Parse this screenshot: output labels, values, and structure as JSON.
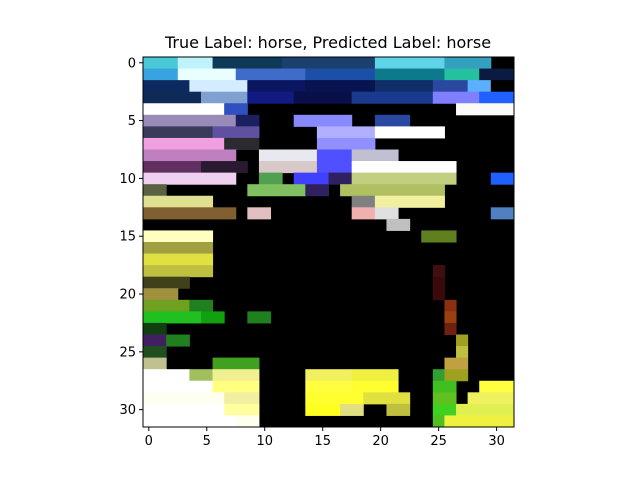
{
  "figure": {
    "title": "True Label: horse, Predicted Label: horse",
    "image_size": 32,
    "x_ticks": [
      "0",
      "5",
      "10",
      "15",
      "20",
      "25",
      "30"
    ],
    "y_ticks": [
      "0",
      "5",
      "10",
      "15",
      "20",
      "25",
      "30"
    ],
    "x_tick_values": [
      0,
      5,
      10,
      15,
      20,
      25,
      30
    ],
    "y_tick_values": [
      0,
      5,
      10,
      15,
      20,
      25,
      30
    ],
    "palette": {
      "background": "#ffffff",
      "axis": "#000000",
      "pixel_default": "#000000"
    }
  }
}
